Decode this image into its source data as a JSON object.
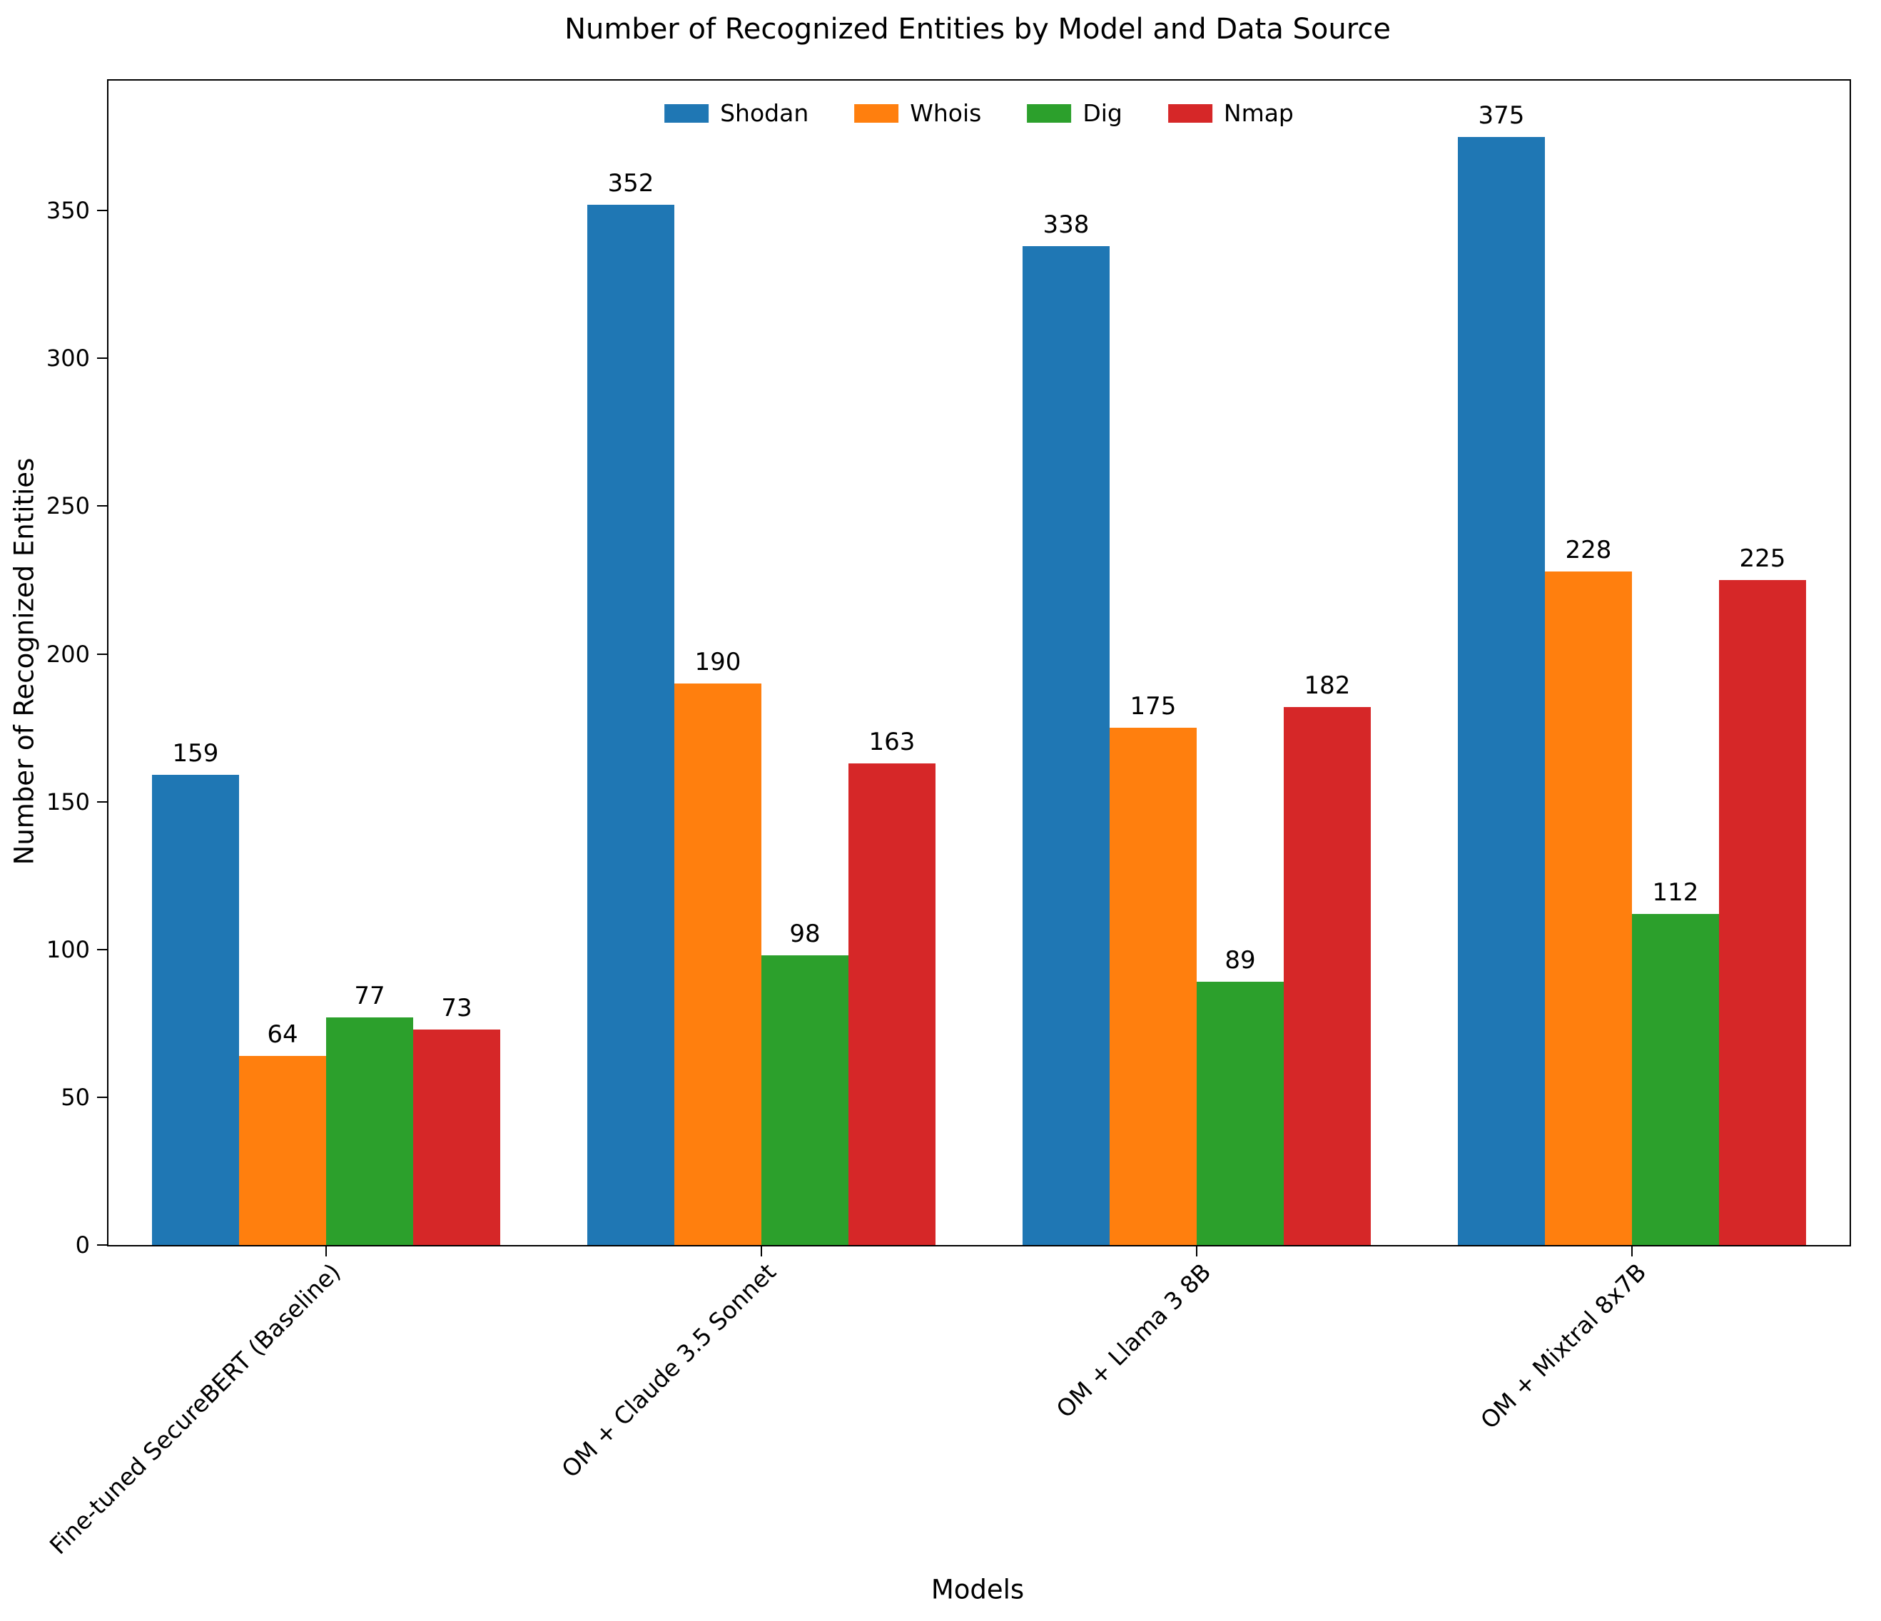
{
  "chart_data": {
    "type": "bar",
    "title": "Number of Recognized Entities by Model and Data Source",
    "xlabel": "Models",
    "ylabel": "Number of Recognized Entities",
    "categories": [
      "Fine-tuned SecureBERT (Baseline)",
      "OM + Claude 3.5 Sonnet",
      "OM + Llama 3 8B",
      "OM + Mixtral 8x7B"
    ],
    "series": [
      {
        "name": "Shodan",
        "color": "#1f77b4",
        "values": [
          159,
          352,
          338,
          375
        ]
      },
      {
        "name": "Whois",
        "color": "#ff7f0e",
        "values": [
          64,
          190,
          175,
          228
        ]
      },
      {
        "name": "Dig",
        "color": "#2ca02c",
        "values": [
          77,
          98,
          89,
          112
        ]
      },
      {
        "name": "Nmap",
        "color": "#d62728",
        "values": [
          73,
          163,
          182,
          225
        ]
      }
    ],
    "yticks": [
      0,
      50,
      100,
      150,
      200,
      250,
      300,
      350
    ],
    "ylim": [
      0,
      394
    ],
    "grid": false,
    "legend_position": "upper center",
    "bar_width_fraction": 0.2
  }
}
